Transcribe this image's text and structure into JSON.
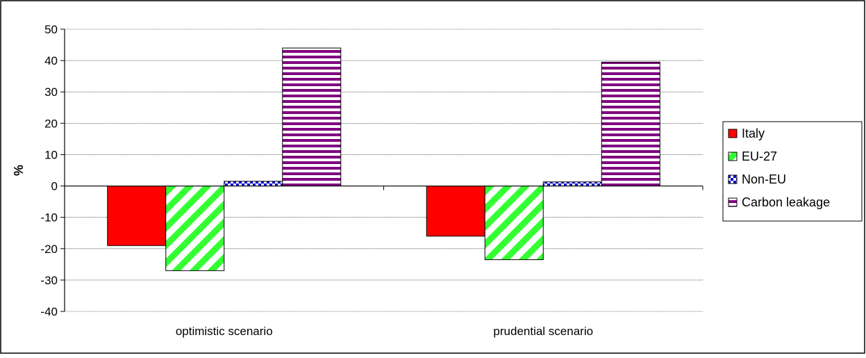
{
  "chart_data": {
    "type": "bar",
    "title": "",
    "xlabel": "",
    "ylabel": "%",
    "ylim": [
      -40,
      50
    ],
    "yticks": [
      50,
      40,
      30,
      20,
      10,
      0,
      -10,
      -20,
      -30,
      -40
    ],
    "grid": true,
    "legend_position": "right",
    "categories": [
      "optimistic scenario",
      "prudential scenario"
    ],
    "series": [
      {
        "name": "Italy",
        "values": [
          -19,
          -16
        ],
        "color": "#ff0000",
        "pattern": "solid"
      },
      {
        "name": "EU-27",
        "values": [
          -27,
          -23.5
        ],
        "color": "#33ff33",
        "pattern": "diagonal-stripes"
      },
      {
        "name": "Non-EU",
        "values": [
          1.5,
          1.3
        ],
        "color": "#0000cc",
        "pattern": "checker"
      },
      {
        "name": "Carbon leakage",
        "values": [
          44,
          39.5
        ],
        "color": "#800080",
        "pattern": "horizontal-stripes"
      }
    ]
  }
}
